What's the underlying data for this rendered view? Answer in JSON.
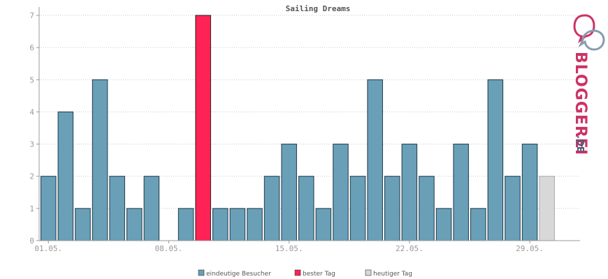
{
  "chart_data": {
    "type": "bar",
    "title": "Sailing Dreams",
    "xlabel": "",
    "ylabel": "",
    "ylim": [
      0,
      7
    ],
    "yticks": [
      "0",
      "1",
      "2",
      "3",
      "4",
      "5",
      "6",
      "7"
    ],
    "grid": true,
    "legend_position": "bottom",
    "days": [
      1,
      2,
      3,
      4,
      5,
      6,
      7,
      8,
      9,
      10,
      11,
      12,
      13,
      14,
      15,
      16,
      17,
      18,
      19,
      20,
      21,
      22,
      23,
      24,
      25,
      26,
      27,
      28,
      29,
      30
    ],
    "values": [
      2,
      4,
      1,
      5,
      2,
      1,
      2,
      0,
      1,
      7,
      1,
      1,
      1,
      2,
      3,
      2,
      1,
      3,
      2,
      5,
      2,
      3,
      2,
      1,
      3,
      1,
      5,
      2,
      3,
      2
    ],
    "bar_types": [
      "visitor",
      "visitor",
      "visitor",
      "visitor",
      "visitor",
      "visitor",
      "visitor",
      "visitor",
      "visitor",
      "best",
      "visitor",
      "visitor",
      "visitor",
      "visitor",
      "visitor",
      "visitor",
      "visitor",
      "visitor",
      "visitor",
      "visitor",
      "visitor",
      "visitor",
      "visitor",
      "visitor",
      "visitor",
      "visitor",
      "visitor",
      "visitor",
      "visitor",
      "today"
    ],
    "xticks": [
      {
        "day": 1,
        "label": "01.05."
      },
      {
        "day": 8,
        "label": "08.05."
      },
      {
        "day": 15,
        "label": "15.05."
      },
      {
        "day": 22,
        "label": "22.05."
      },
      {
        "day": 29,
        "label": "29.05."
      }
    ],
    "legend": [
      {
        "key": "visitor",
        "label": "eindeutige Besucher",
        "color": "#6a9fb8"
      },
      {
        "key": "best",
        "label": "bester Tag",
        "color": "#ff2255"
      },
      {
        "key": "today",
        "label": "heutiger Tag",
        "color": "#d8d8d8"
      }
    ]
  },
  "branding": {
    "name": "BLOGGEREI",
    "suffix": ".DE",
    "logo_icon": "speech-bubbles-icon",
    "pink": "#cc3366",
    "slate": "#4a5f78"
  }
}
